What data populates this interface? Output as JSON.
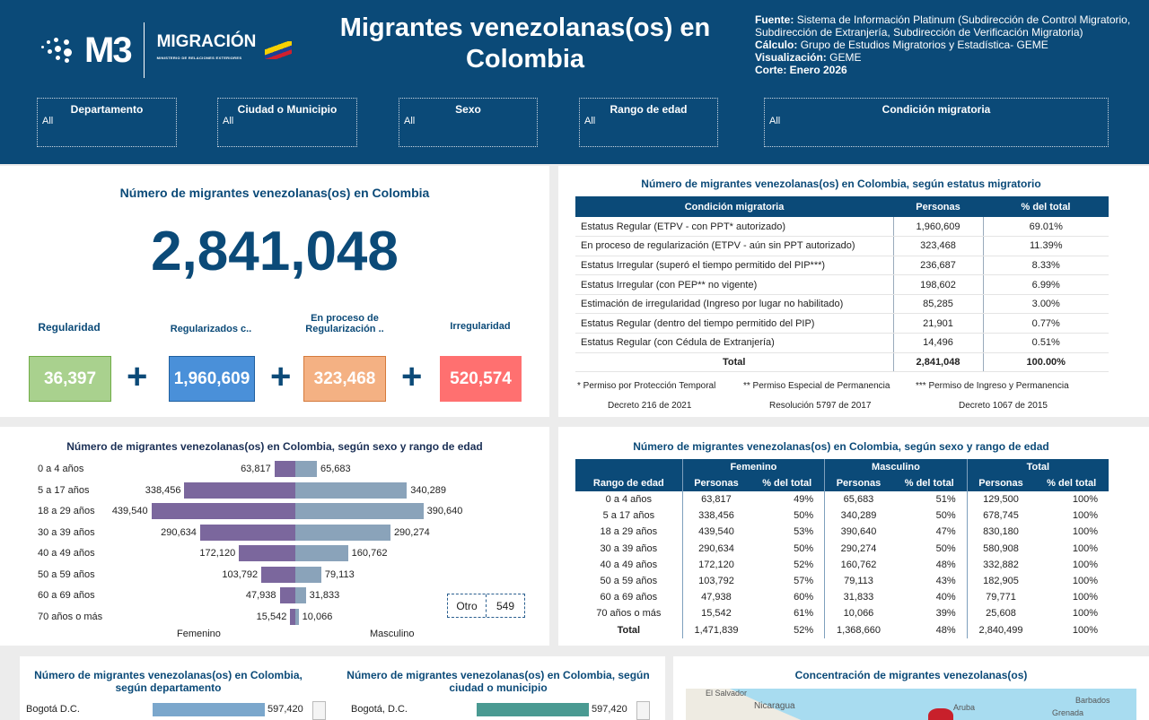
{
  "header": {
    "logo_text": "M3",
    "logo_brand": "MIGRACIÓN",
    "logo_sub": "MINISTERIO DE RELACIONES EXTERIORES",
    "title": "Migrantes venezolanas(os) en Colombia",
    "source_label": "Fuente:",
    "source": "Sistema de Información Platinum (Subdirección de Control Migratorio, Subdirección de Extranjería, Subdirección de Verificación Migratoria)",
    "calc_label": "Cálculo:",
    "calc": "Grupo de Estudios Migratorios y Estadística- GEME",
    "vis_label": "Visualización:",
    "vis": "GEME",
    "cut": "Corte: Enero 2026"
  },
  "filters": [
    {
      "label": "Departamento",
      "value": "All"
    },
    {
      "label": "Ciudad o Municipio",
      "value": "All"
    },
    {
      "label": "Sexo",
      "value": "All"
    },
    {
      "label": "Rango de edad",
      "value": "All"
    },
    {
      "label": "Condición migratoria",
      "value": "All"
    }
  ],
  "total_panel": {
    "title": "Número de migrantes venezolanas(os) en Colombia",
    "total": "2,841,048",
    "kpis": [
      {
        "label": "Regularidad",
        "value": "36,397",
        "color": "#a9d18e"
      },
      {
        "label": "Regularizados c..",
        "value": "1,960,609",
        "color": "#4a90d9"
      },
      {
        "label": "En proceso de Regularización ..",
        "value": "323,468",
        "color": "#f4b183"
      },
      {
        "label": "Irregularidad",
        "value": "520,574",
        "color": "#ff7070"
      }
    ],
    "plus": "+"
  },
  "status_panel": {
    "title": "Número de migrantes venezolanas(os) en Colombia, según estatus migratorio",
    "headers": [
      "Condición migratoria",
      "Personas",
      "% del total"
    ],
    "rows": [
      [
        "Estatus Regular (ETPV - con PPT* autorizado)",
        "1,960,609",
        "69.01%"
      ],
      [
        "En proceso de regularización (ETPV - aún sin PPT autorizado)",
        "323,468",
        "11.39%"
      ],
      [
        "Estatus Irregular (superó el tiempo permitido del PIP***)",
        "236,687",
        "8.33%"
      ],
      [
        "Estatus Irregular (con PEP** no vigente)",
        "198,602",
        "6.99%"
      ],
      [
        "Estimación de irregularidad (Ingreso por lugar no habilitado)",
        "85,285",
        "3.00%"
      ],
      [
        "Estatus Regular (dentro del tiempo permitido del PIP)",
        "21,901",
        "0.77%"
      ],
      [
        "Estatus Regular (con Cédula de Extranjería)",
        "14,496",
        "0.51%"
      ]
    ],
    "total": [
      "Total",
      "2,841,048",
      "100.00%"
    ],
    "notes": [
      "* Permiso por Protección Temporal",
      "** Permiso Especial de Permanencia",
      "*** Permiso de Ingreso y Permanencia"
    ],
    "decrees": [
      "Decreto 216 de 2021",
      "Resolución 5797 de 2017",
      "Decreto 1067 de 2015"
    ]
  },
  "chart_data": {
    "type": "bar",
    "title": "Número de migrantes venezolanas(os) en Colombia, según sexo y rango de edad",
    "categories": [
      "0 a 4 años",
      "5 a 17 años",
      "18 a 29 años",
      "30 a 39 años",
      "40 a 49 años",
      "50 a 59 años",
      "60 a 69 años",
      "70 años o más"
    ],
    "series": [
      {
        "name": "Femenino",
        "values": [
          63817,
          338456,
          439540,
          290634,
          172120,
          103792,
          47938,
          15542
        ],
        "labels": [
          "63,817",
          "338,456",
          "439,540",
          "290,634",
          "172,120",
          "103,792",
          "47,938",
          "15,542"
        ],
        "color": "#7b679d"
      },
      {
        "name": "Masculino",
        "values": [
          65683,
          340289,
          390640,
          290274,
          160762,
          79113,
          31833,
          10066
        ],
        "labels": [
          "65,683",
          "340,289",
          "390,640",
          "290,274",
          "160,762",
          "79,113",
          "31,833",
          "10,066"
        ],
        "color": "#8aa3ba"
      }
    ],
    "other": {
      "label": "Otro",
      "value": "549"
    }
  },
  "age_table": {
    "title": "Número de migrantes venezolanas(os) en Colombia, según sexo y rango de edad",
    "groups": [
      "Femenino",
      "Masculino",
      "Total"
    ],
    "headers": [
      "Rango de edad",
      "Personas",
      "% del total",
      "Personas",
      "% del total",
      "Personas",
      "% del total"
    ],
    "rows": [
      [
        "0 a 4 años",
        "63,817",
        "49%",
        "65,683",
        "51%",
        "129,500",
        "100%"
      ],
      [
        "5 a 17 años",
        "338,456",
        "50%",
        "340,289",
        "50%",
        "678,745",
        "100%"
      ],
      [
        "18 a 29 años",
        "439,540",
        "53%",
        "390,640",
        "47%",
        "830,180",
        "100%"
      ],
      [
        "30 a 39 años",
        "290,634",
        "50%",
        "290,274",
        "50%",
        "580,908",
        "100%"
      ],
      [
        "40 a 49 años",
        "172,120",
        "52%",
        "160,762",
        "48%",
        "332,882",
        "100%"
      ],
      [
        "50 a 59 años",
        "103,792",
        "57%",
        "79,113",
        "43%",
        "182,905",
        "100%"
      ],
      [
        "60 a 69 años",
        "47,938",
        "60%",
        "31,833",
        "40%",
        "79,771",
        "100%"
      ],
      [
        "70 años o más",
        "15,542",
        "61%",
        "10,066",
        "39%",
        "25,608",
        "100%"
      ],
      [
        "Total",
        "1,471,839",
        "52%",
        "1,368,660",
        "48%",
        "2,840,499",
        "100%"
      ]
    ]
  },
  "dept_panel": {
    "title": "Número de migrantes venezolanas(os) en Colombia, según departamento",
    "rows": [
      {
        "name": "Bogotá D.C.",
        "value": "597,420"
      }
    ]
  },
  "city_panel": {
    "title": "Número de migrantes venezolanas(os) en Colombia, según ciudad o municipio",
    "rows": [
      {
        "name": "Bogotá, D.C.",
        "value": "597,420"
      }
    ]
  },
  "map_panel": {
    "title": "Concentración de migrantes venezolanas(os)",
    "labels": [
      "El Salvador",
      "Nicaragua",
      "Aruba",
      "Barbados",
      "Grenada"
    ]
  }
}
